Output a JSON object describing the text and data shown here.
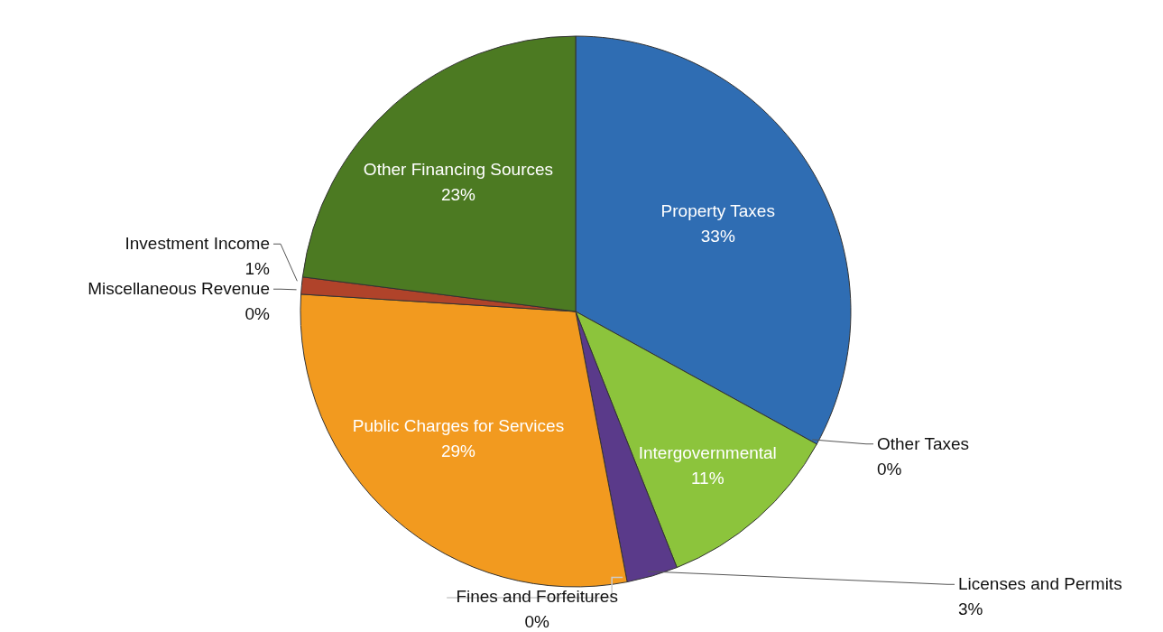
{
  "chart_data": {
    "type": "pie",
    "categories": [
      "Property Taxes",
      "Other Taxes",
      "Intergovernmental",
      "Licenses and Permits",
      "Fines and Forfeitures",
      "Public Charges for Services",
      "Miscellaneous Revenue",
      "Investment Income",
      "Other Financing Sources"
    ],
    "values": [
      33,
      0,
      11,
      3,
      0,
      29,
      0,
      1,
      23
    ],
    "value_labels": [
      "33%",
      "0%",
      "11%",
      "3%",
      "0%",
      "29%",
      "0%",
      "1%",
      "23%"
    ],
    "colors": [
      "#2f6db3",
      "#2a5f9e",
      "#8cc43c",
      "#5a3a8a",
      "#1f6aa5",
      "#f29a1f",
      "#2560a8",
      "#b0432a",
      "#4c7a22"
    ]
  }
}
